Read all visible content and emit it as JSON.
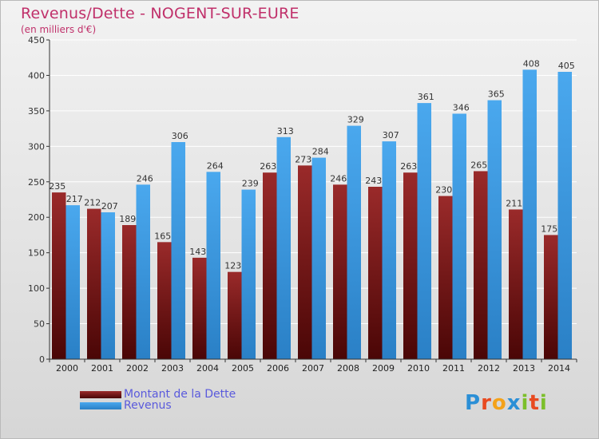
{
  "header": {
    "title": "Revenus/Dette - NOGENT-SUR-EURE",
    "subtitle": "(en milliers d'€)"
  },
  "legend": {
    "debt_label": "Montant de la Dette",
    "revenue_label": "Revenus"
  },
  "logo": {
    "text": "Proxiti",
    "letters": [
      "P",
      "r",
      "o",
      "x",
      "i",
      "t",
      "i"
    ],
    "colors": [
      "#2b8fd6",
      "#e84a20",
      "#f4a21a",
      "#2b8fd6",
      "#7cbf2a",
      "#e84a20",
      "#7cbf2a"
    ]
  },
  "colors": {
    "debt": "#7a1717",
    "revenue": "#3fa0e6",
    "axis": "#333333",
    "grid": "#ffffff"
  },
  "chart_data": {
    "type": "bar",
    "title": "Revenus/Dette - NOGENT-SUR-EURE",
    "subtitle": "(en milliers d'€)",
    "xlabel": "",
    "ylabel": "",
    "ylim": [
      0,
      450
    ],
    "yticks": [
      0,
      50,
      100,
      150,
      200,
      250,
      300,
      350,
      400,
      450
    ],
    "grid": true,
    "legend_position": "bottom-left",
    "categories": [
      "2000",
      "2001",
      "2002",
      "2003",
      "2004",
      "2005",
      "2006",
      "2007",
      "2008",
      "2009",
      "2010",
      "2011",
      "2012",
      "2013",
      "2014"
    ],
    "series": [
      {
        "name": "Montant de la Dette",
        "values": [
          235,
          212,
          189,
          165,
          143,
          123,
          263,
          273,
          246,
          243,
          263,
          230,
          265,
          211,
          175
        ]
      },
      {
        "name": "Revenus",
        "values": [
          217,
          207,
          246,
          306,
          264,
          239,
          313,
          284,
          329,
          307,
          361,
          346,
          365,
          408,
          405
        ]
      }
    ]
  }
}
